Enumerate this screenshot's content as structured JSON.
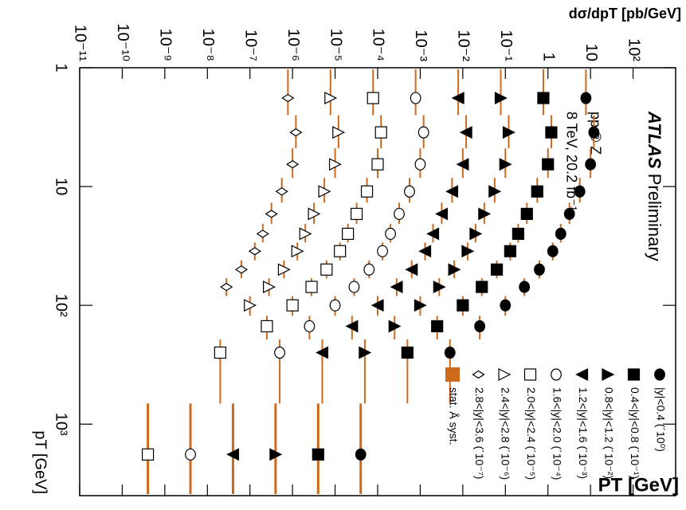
{
  "chart_data": {
    "type": "scatter",
    "ylabel": "dσ/dpT [pb/GeV]",
    "xlabel": "pT [GeV]",
    "annotation": "PT [GeV]",
    "experiment": "ATLAS",
    "status": "Preliminary",
    "process": "pp ® Z",
    "energy_lumi": "8 TeV, 20.2 fb⁻¹",
    "xscale": "log",
    "yscale": "log",
    "xlim": [
      1,
      4000
    ],
    "ylim": [
      1e-11,
      1000
    ],
    "xticks": [
      1,
      10,
      {
        "value": 100,
        "label": "10²"
      },
      {
        "value": 1000,
        "label": "10³"
      }
    ],
    "yticks": [
      {
        "value": 1e-11,
        "label": "10⁻¹¹"
      },
      {
        "value": 1e-10,
        "label": "10⁻¹⁰"
      },
      {
        "value": 1e-09,
        "label": "10⁻⁹"
      },
      {
        "value": 1e-08,
        "label": "10⁻⁸"
      },
      {
        "value": 1e-07,
        "label": "10⁻⁷"
      },
      {
        "value": 1e-06,
        "label": "10⁻⁶"
      },
      {
        "value": 1e-05,
        "label": "10⁻⁵"
      },
      {
        "value": 0.0001,
        "label": "10⁻⁴"
      },
      {
        "value": 0.001,
        "label": "10⁻³"
      },
      {
        "value": 0.01,
        "label": "10⁻²"
      },
      {
        "value": 0.1,
        "label": "10⁻¹"
      },
      1,
      10,
      {
        "value": 100,
        "label": "10²"
      }
    ],
    "band_color": "#cc6a1e",
    "band_label": "stat. Å syst.",
    "x": [
      1.8,
      3.5,
      6.5,
      11,
      17,
      25,
      35,
      50,
      70,
      100,
      150,
      250,
      1800
    ],
    "series": [
      {
        "name": "|y|<0.4 (´10⁰)",
        "marker": "circle",
        "color": "#000000",
        "values": [
          7.8,
          12,
          10,
          5.6,
          3.2,
          2,
          1.3,
          0.63,
          0.28,
          0.1,
          0.025,
          0.005,
          4e-05
        ]
      },
      {
        "name": "0.4<|y|<0.8 (´10⁻¹)",
        "marker": "square",
        "color": "#000000",
        "values": [
          0.78,
          1.2,
          1.0,
          0.56,
          0.32,
          0.2,
          0.13,
          0.063,
          0.028,
          0.01,
          0.0025,
          0.0005,
          4e-06
        ]
      },
      {
        "name": "0.8<|y|<1.2 (´10⁻²)",
        "marker": "triangle-up",
        "color": "#000000",
        "values": [
          0.078,
          0.12,
          0.1,
          0.056,
          0.032,
          0.02,
          0.013,
          0.0063,
          0.0028,
          0.001,
          0.00025,
          5e-05,
          4e-07
        ]
      },
      {
        "name": "1.2<|y|<1.6 (´10⁻³)",
        "marker": "triangle-down",
        "color": "#000000",
        "values": [
          0.0078,
          0.012,
          0.01,
          0.0056,
          0.0032,
          0.002,
          0.0013,
          0.00063,
          0.00028,
          0.0001,
          2.5e-05,
          5e-06,
          4e-08
        ]
      },
      {
        "name": "1.6<|y|<2.0 (´10⁻⁴)",
        "marker": "circle-open",
        "color": "#000000",
        "values": [
          0.00078,
          0.0012,
          0.001,
          0.00056,
          0.00032,
          0.0002,
          0.00013,
          6.3e-05,
          2.8e-05,
          1e-05,
          2.5e-06,
          5e-07,
          4e-09
        ]
      },
      {
        "name": "2.0<|y|<2.4 (´10⁻⁵)",
        "marker": "square-open",
        "color": "#000000",
        "values": [
          7.8e-05,
          0.00012,
          0.0001,
          5.6e-05,
          3.2e-05,
          2e-05,
          1.3e-05,
          6.3e-06,
          2.8e-06,
          1e-06,
          2.5e-07,
          2e-08,
          4e-10
        ]
      },
      {
        "name": "2.4<|y|<2.8 (´10⁻⁶)",
        "marker": "triangle-open",
        "color": "#000000",
        "values": [
          7.8e-06,
          1.2e-05,
          1e-05,
          5.6e-06,
          3.2e-06,
          2e-06,
          1.3e-06,
          6.3e-07,
          2.8e-07,
          1e-07,
          null,
          null,
          null
        ]
      },
      {
        "name": "2.8<|y|<3.6 (´10⁻⁷)",
        "marker": "diamond-open",
        "color": "#000000",
        "values": [
          7.8e-07,
          1.2e-06,
          1e-06,
          5.6e-07,
          3.2e-07,
          2e-07,
          1.3e-07,
          6.3e-08,
          2.8e-08,
          null,
          null,
          null,
          null
        ]
      }
    ]
  }
}
